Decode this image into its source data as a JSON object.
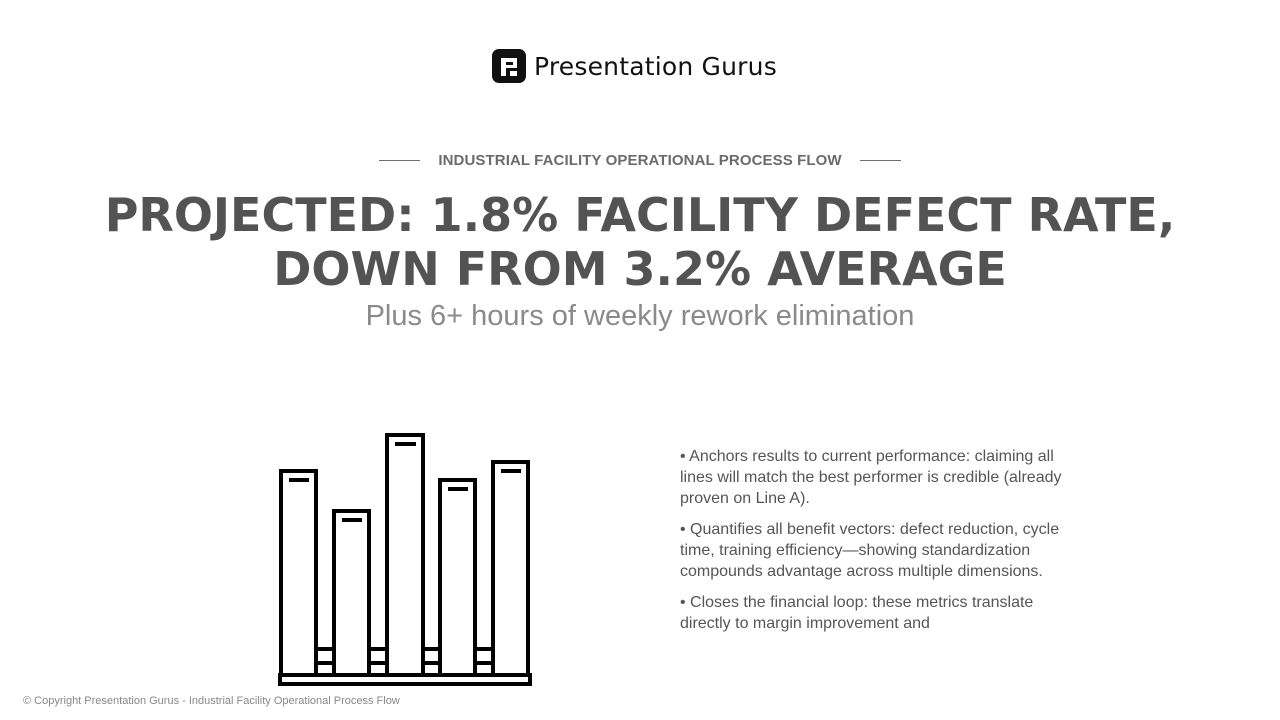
{
  "brand": {
    "name": "Presentation Gurus",
    "logo_icon": "presentation-gurus-logo-icon"
  },
  "slide": {
    "eyebrow": "INDUSTRIAL FACILITY OPERATIONAL PROCESS FLOW",
    "headline": "PROJECTED: 1.8% FACILITY DEFECT RATE, DOWN FROM 3.2% AVERAGE",
    "subhead": "Plus 6+ hours of weekly rework elimination",
    "illustration_icon": "bar-chart-icon",
    "bullets": [
      "• Anchors results to current performance: claiming all lines will match the best performer is credible (already proven on Line A).",
      "• Quantifies all benefit vectors: defect reduction, cycle time, training efficiency—showing standardization compounds advantage across multiple dimensions.",
      "• Closes the financial loop: these metrics translate directly to margin improvement and"
    ]
  },
  "footer": {
    "copyright": "© Copyright Presentation Gurus - Industrial Facility Operational Process Flow"
  },
  "colors": {
    "headline": "#535353",
    "subhead": "#8a8a8a",
    "eyebrow": "#6b6b6b",
    "body": "#555555",
    "logo": "#111111"
  }
}
